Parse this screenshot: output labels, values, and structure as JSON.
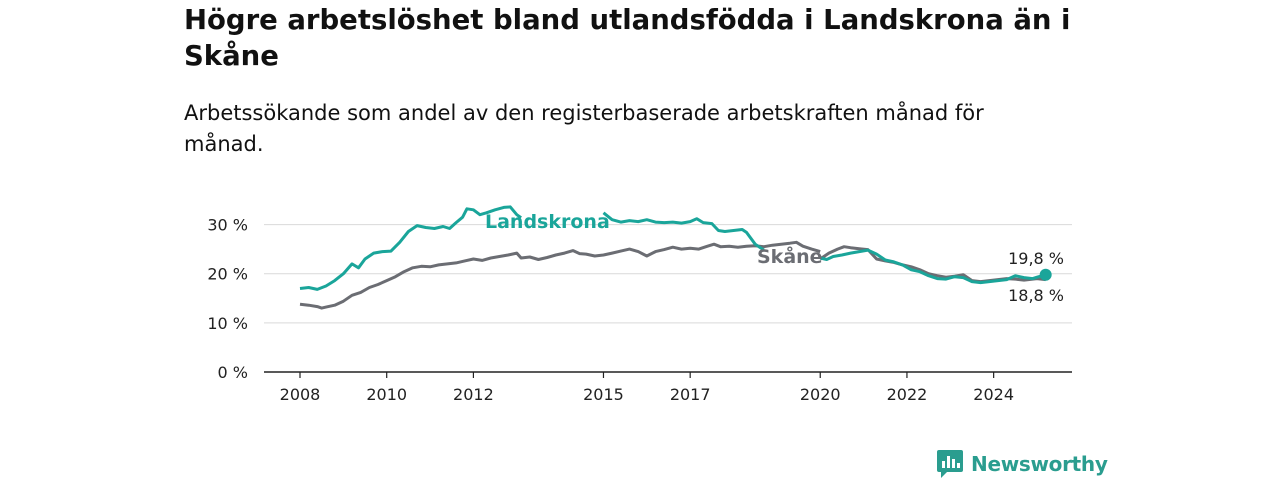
{
  "title": "Högre arbetslöshet bland utlandsfödda i Landskrona än i Skåne",
  "subtitle": "Arbetssökande som andel av den registerbaserade arbetskraften månad för månad.",
  "brand": {
    "name": "Newsworthy",
    "color": "#2a9d8f",
    "icon": "newsworthy-logo-icon"
  },
  "chart_data": {
    "type": "line",
    "title": "Högre arbetslöshet bland utlandsfödda i Landskrona än i Skåne",
    "subtitle": "Arbetssökande som andel av den registerbaserade arbetskraften månad för månad.",
    "xlabel": "",
    "ylabel": "",
    "xlim": [
      2008,
      2025
    ],
    "ylim": [
      0,
      35
    ],
    "grid": true,
    "x_ticks": [
      2008,
      2010,
      2012,
      2015,
      2017,
      2020,
      2022,
      2024
    ],
    "y_ticks": [
      0,
      10,
      20,
      30
    ],
    "y_tick_labels": [
      "0 %",
      "10 %",
      "20 %",
      "30 %"
    ],
    "series": [
      {
        "name": "Landskrona",
        "color": "#1aa59a",
        "points": [
          [
            2008.0,
            17.0
          ],
          [
            2008.2,
            17.2
          ],
          [
            2008.4,
            16.8
          ],
          [
            2008.6,
            17.5
          ],
          [
            2008.8,
            18.6
          ],
          [
            2009.0,
            20.0
          ],
          [
            2009.2,
            22.0
          ],
          [
            2009.35,
            21.2
          ],
          [
            2009.5,
            23.0
          ],
          [
            2009.7,
            24.2
          ],
          [
            2009.9,
            24.5
          ],
          [
            2010.1,
            24.6
          ],
          [
            2010.3,
            26.4
          ],
          [
            2010.5,
            28.6
          ],
          [
            2010.7,
            29.8
          ],
          [
            2010.9,
            29.4
          ],
          [
            2011.1,
            29.2
          ],
          [
            2011.3,
            29.6
          ],
          [
            2011.45,
            29.2
          ],
          [
            2011.6,
            30.4
          ],
          [
            2011.75,
            31.5
          ],
          [
            2011.85,
            33.2
          ],
          [
            2012.0,
            33.0
          ],
          [
            2012.15,
            32.0
          ],
          [
            2012.3,
            32.4
          ],
          [
            2012.5,
            33.0
          ],
          [
            2012.7,
            33.5
          ],
          [
            2012.85,
            33.6
          ],
          [
            2013.0,
            32.0
          ],
          [
            2013.1,
            31.4
          ],
          null,
          [
            2015.0,
            32.4
          ],
          [
            2015.2,
            31.0
          ],
          [
            2015.4,
            30.5
          ],
          [
            2015.6,
            30.8
          ],
          [
            2015.8,
            30.6
          ],
          [
            2016.0,
            31.0
          ],
          [
            2016.2,
            30.5
          ],
          [
            2016.4,
            30.4
          ],
          [
            2016.6,
            30.5
          ],
          [
            2016.8,
            30.3
          ],
          [
            2017.0,
            30.6
          ],
          [
            2017.15,
            31.2
          ],
          [
            2017.3,
            30.4
          ],
          [
            2017.5,
            30.2
          ],
          [
            2017.65,
            28.8
          ],
          [
            2017.8,
            28.6
          ],
          [
            2018.0,
            28.8
          ],
          [
            2018.2,
            29.0
          ],
          [
            2018.3,
            28.4
          ],
          [
            2018.5,
            26.0
          ],
          [
            2018.7,
            24.8
          ],
          null,
          [
            2020.0,
            23.2
          ],
          [
            2020.15,
            22.9
          ],
          [
            2020.3,
            23.5
          ],
          [
            2020.5,
            23.8
          ],
          [
            2020.7,
            24.2
          ],
          [
            2020.9,
            24.5
          ],
          [
            2021.1,
            24.8
          ],
          [
            2021.3,
            24.0
          ],
          [
            2021.5,
            22.8
          ],
          [
            2021.7,
            22.4
          ],
          [
            2021.9,
            21.8
          ],
          [
            2022.1,
            20.8
          ],
          [
            2022.3,
            20.4
          ],
          [
            2022.5,
            19.6
          ],
          [
            2022.7,
            19.0
          ],
          [
            2022.9,
            18.9
          ],
          [
            2023.1,
            19.4
          ],
          [
            2023.3,
            19.2
          ],
          [
            2023.5,
            18.4
          ],
          [
            2023.7,
            18.2
          ],
          [
            2023.9,
            18.4
          ],
          [
            2024.1,
            18.6
          ],
          [
            2024.3,
            18.8
          ],
          [
            2024.5,
            19.6
          ],
          [
            2024.7,
            19.2
          ],
          [
            2024.9,
            19.0
          ],
          [
            2025.0,
            19.3
          ],
          [
            2025.2,
            19.8
          ]
        ],
        "end_label": "19,8 %"
      },
      {
        "name": "Skåne",
        "color": "#6b6d73",
        "points": [
          [
            2008.0,
            13.8
          ],
          [
            2008.2,
            13.6
          ],
          [
            2008.4,
            13.3
          ],
          [
            2008.5,
            13.0
          ],
          [
            2008.6,
            13.2
          ],
          [
            2008.8,
            13.6
          ],
          [
            2009.0,
            14.4
          ],
          [
            2009.2,
            15.6
          ],
          [
            2009.4,
            16.2
          ],
          [
            2009.6,
            17.2
          ],
          [
            2009.8,
            17.8
          ],
          [
            2010.0,
            18.6
          ],
          [
            2010.2,
            19.4
          ],
          [
            2010.4,
            20.4
          ],
          [
            2010.6,
            21.2
          ],
          [
            2010.8,
            21.5
          ],
          [
            2011.0,
            21.4
          ],
          [
            2011.2,
            21.8
          ],
          [
            2011.4,
            22.0
          ],
          [
            2011.6,
            22.2
          ],
          [
            2011.8,
            22.6
          ],
          [
            2012.0,
            23.0
          ],
          [
            2012.2,
            22.7
          ],
          [
            2012.4,
            23.2
          ],
          [
            2012.6,
            23.5
          ],
          [
            2012.8,
            23.8
          ],
          [
            2013.0,
            24.2
          ],
          [
            2013.1,
            23.2
          ],
          [
            2013.3,
            23.4
          ],
          [
            2013.5,
            22.9
          ],
          [
            2013.7,
            23.3
          ],
          [
            2013.9,
            23.8
          ],
          [
            2014.1,
            24.2
          ],
          [
            2014.3,
            24.7
          ],
          [
            2014.45,
            24.1
          ],
          [
            2014.6,
            24.0
          ],
          [
            2014.8,
            23.6
          ],
          [
            2015.0,
            23.8
          ],
          [
            2015.2,
            24.2
          ],
          [
            2015.4,
            24.6
          ],
          [
            2015.6,
            25.0
          ],
          [
            2015.8,
            24.5
          ],
          [
            2016.0,
            23.6
          ],
          [
            2016.2,
            24.5
          ],
          [
            2016.4,
            24.9
          ],
          [
            2016.6,
            25.4
          ],
          [
            2016.8,
            25.0
          ],
          [
            2017.0,
            25.2
          ],
          [
            2017.2,
            25.0
          ],
          [
            2017.4,
            25.6
          ],
          [
            2017.55,
            26.0
          ],
          [
            2017.7,
            25.5
          ],
          [
            2017.9,
            25.6
          ],
          [
            2018.1,
            25.4
          ],
          [
            2018.3,
            25.6
          ],
          [
            2018.5,
            25.7
          ],
          [
            2018.7,
            25.5
          ],
          [
            2018.9,
            25.8
          ],
          [
            2019.1,
            26.0
          ],
          [
            2019.3,
            26.2
          ],
          [
            2019.45,
            26.4
          ],
          [
            2019.6,
            25.6
          ],
          [
            2019.8,
            25.0
          ],
          [
            2020.0,
            24.5
          ],
          null,
          [
            2020.0,
            23.0
          ],
          [
            2020.2,
            24.2
          ],
          [
            2020.4,
            25.0
          ],
          [
            2020.55,
            25.5
          ],
          [
            2020.7,
            25.3
          ],
          [
            2020.9,
            25.1
          ],
          [
            2021.1,
            24.9
          ],
          [
            2021.3,
            23.0
          ],
          [
            2021.5,
            22.6
          ],
          [
            2021.7,
            22.3
          ],
          [
            2021.9,
            21.8
          ],
          [
            2022.1,
            21.4
          ],
          [
            2022.3,
            20.8
          ],
          [
            2022.5,
            20.0
          ],
          [
            2022.7,
            19.6
          ],
          [
            2022.9,
            19.3
          ],
          [
            2023.1,
            19.5
          ],
          [
            2023.3,
            19.8
          ],
          [
            2023.5,
            18.6
          ],
          [
            2023.7,
            18.4
          ],
          [
            2023.9,
            18.6
          ],
          [
            2024.1,
            18.8
          ],
          [
            2024.3,
            19.0
          ],
          [
            2024.5,
            18.9
          ],
          [
            2024.7,
            18.7
          ],
          [
            2024.9,
            18.9
          ],
          [
            2025.0,
            19.0
          ],
          [
            2025.2,
            18.8
          ]
        ],
        "end_label": "18,8 %"
      }
    ]
  }
}
